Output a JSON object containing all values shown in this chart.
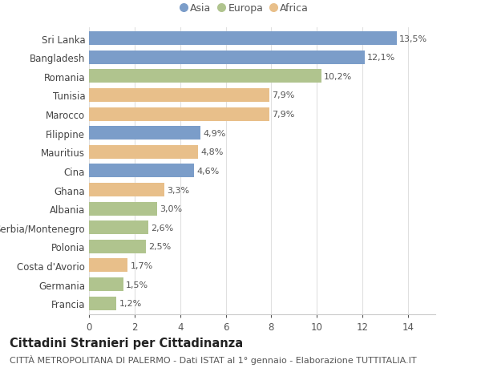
{
  "countries": [
    "Francia",
    "Germania",
    "Costa d'Avorio",
    "Polonia",
    "Serbia/Montenegro",
    "Albania",
    "Ghana",
    "Cina",
    "Mauritius",
    "Filippine",
    "Marocco",
    "Tunisia",
    "Romania",
    "Bangladesh",
    "Sri Lanka"
  ],
  "values": [
    1.2,
    1.5,
    1.7,
    2.5,
    2.6,
    3.0,
    3.3,
    4.6,
    4.8,
    4.9,
    7.9,
    7.9,
    10.2,
    12.1,
    13.5
  ],
  "regions": [
    "Europa",
    "Europa",
    "Africa",
    "Europa",
    "Europa",
    "Europa",
    "Africa",
    "Asia",
    "Africa",
    "Asia",
    "Africa",
    "Africa",
    "Europa",
    "Asia",
    "Asia"
  ],
  "labels": [
    "1,2%",
    "1,5%",
    "1,7%",
    "2,5%",
    "2,6%",
    "3,0%",
    "3,3%",
    "4,6%",
    "4,8%",
    "4,9%",
    "7,9%",
    "7,9%",
    "10,2%",
    "12,1%",
    "13,5%"
  ],
  "colors": {
    "Asia": "#7b9dc9",
    "Europa": "#b0c48e",
    "Africa": "#e8bf8a"
  },
  "legend_order": [
    "Asia",
    "Europa",
    "Africa"
  ],
  "legend_colors": [
    "#7b9dc9",
    "#b0c48e",
    "#e8bf8a"
  ],
  "title": "Cittadini Stranieri per Cittadinanza",
  "subtitle": "CITTÀ METROPOLITANA DI PALERMO - Dati ISTAT al 1° gennaio - Elaborazione TUTTITALIA.IT",
  "xlabel_ticks": [
    0,
    2,
    4,
    6,
    8,
    10,
    12,
    14
  ],
  "xlim": [
    0,
    15.2
  ],
  "background_color": "#ffffff",
  "bar_height": 0.72,
  "label_fontsize": 8.0,
  "tick_fontsize": 8.5,
  "title_fontsize": 10.5,
  "subtitle_fontsize": 8.0
}
